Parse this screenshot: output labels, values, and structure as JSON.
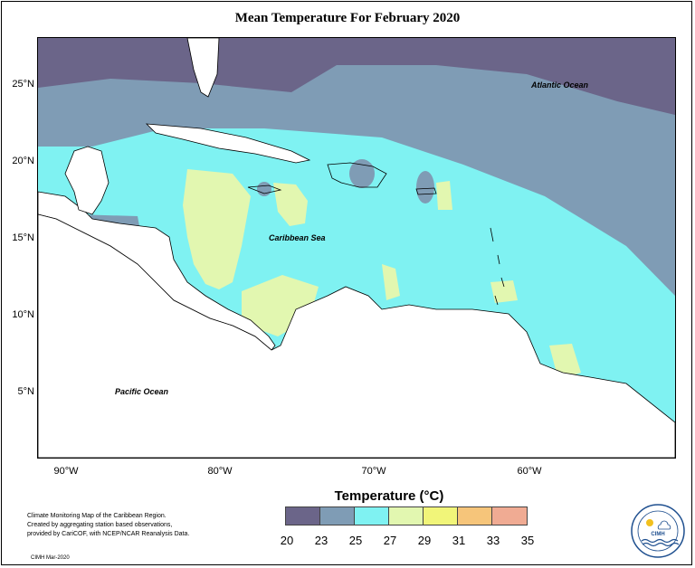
{
  "title": "Mean Temperature For February 2020",
  "map": {
    "labels": {
      "atlantic": "Atlantic Ocean",
      "caribbean": "Caribbean Sea",
      "pacific": "Pacific Ocean"
    },
    "lat_ticks": [
      "25°N",
      "20°N",
      "15°N",
      "10°N",
      "5°N"
    ],
    "lon_ticks": [
      "90°W",
      "80°W",
      "70°W",
      "60°W"
    ]
  },
  "legend": {
    "title": "Temperature (°C)",
    "ticks": [
      "20",
      "23",
      "25",
      "27",
      "29",
      "31",
      "33",
      "35"
    ],
    "colors": [
      "#6b6589",
      "#7f9cb5",
      "#7ff2f2",
      "#e2f7b0",
      "#f1f579",
      "#f6c57a",
      "#f0ab93"
    ]
  },
  "credit": {
    "line1": "Climate Monitoring Map of the Caribbean Region.",
    "line2": "Created by aggregating station based observations,",
    "line3": "provided by CariCOF, with NCEP/NCAR Reanalysis Data.",
    "stamp": "CIMH Mar-2020"
  },
  "logo": {
    "text": "CIMH"
  }
}
